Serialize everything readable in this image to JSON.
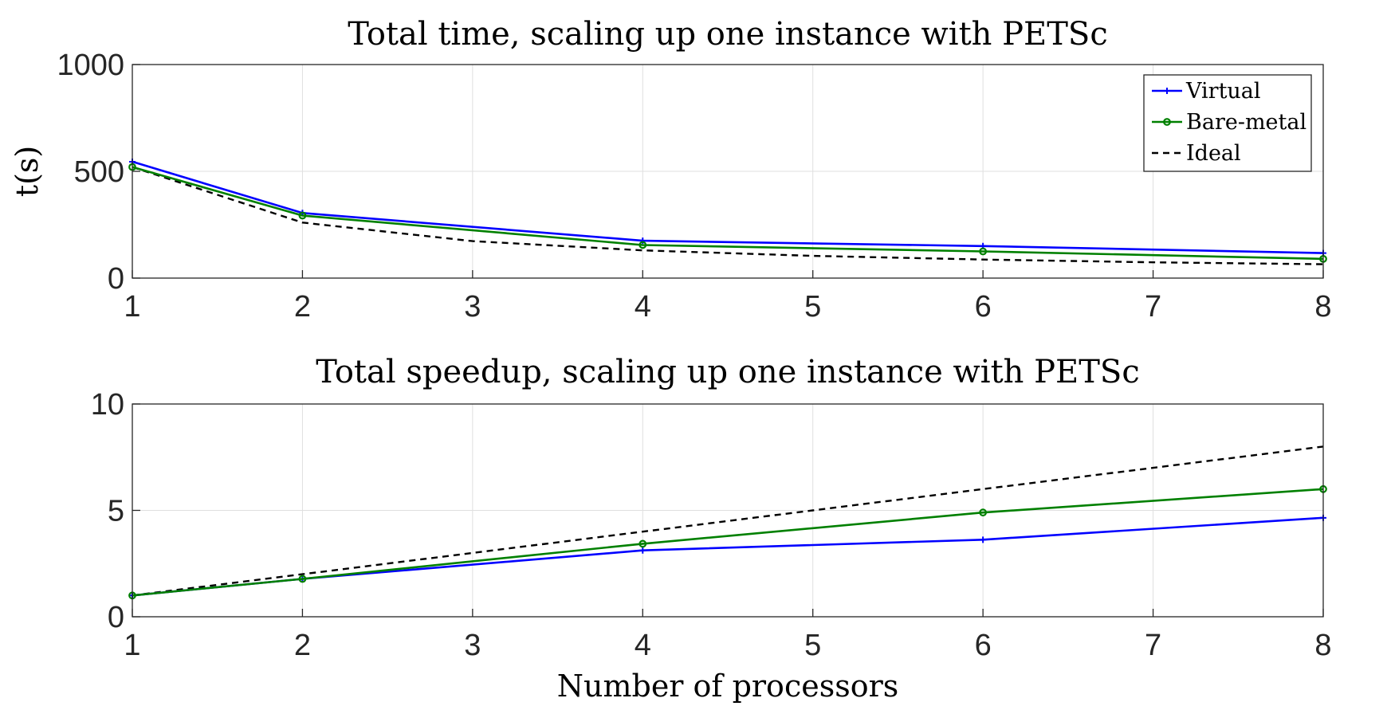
{
  "chart_data": [
    {
      "type": "line",
      "title": "Total time, scaling up one instance with PETSc",
      "xlabel": "",
      "ylabel": "t(s)",
      "xlim": [
        1,
        8
      ],
      "ylim": [
        0,
        1000
      ],
      "xticks": [
        "1",
        "2",
        "3",
        "4",
        "5",
        "6",
        "7",
        "8"
      ],
      "yticks": [
        "0",
        "500",
        "1000"
      ],
      "grid": true,
      "legend_position": "top-right",
      "series": [
        {
          "name": "Virtual",
          "color": "#0000FF",
          "marker": "plus",
          "dash": "solid",
          "x": [
            1,
            2,
            4,
            6,
            8
          ],
          "y": [
            545,
            305,
            175,
            150,
            117
          ]
        },
        {
          "name": "Bare-metal",
          "color": "#008000",
          "marker": "circle",
          "dash": "solid",
          "x": [
            1,
            2,
            4,
            6,
            8
          ],
          "y": [
            520,
            293,
            155,
            125,
            90
          ]
        },
        {
          "name": "Ideal",
          "color": "#000000",
          "marker": "none",
          "dash": "dashed",
          "x": [
            1,
            2,
            3,
            4,
            5,
            6,
            7,
            8
          ],
          "y": [
            520,
            260,
            173,
            130,
            104,
            87,
            74,
            65
          ]
        }
      ]
    },
    {
      "type": "line",
      "title": "Total speedup, scaling up one instance with PETSc",
      "xlabel": "Number of processors",
      "ylabel": "",
      "xlim": [
        1,
        8
      ],
      "ylim": [
        0,
        10
      ],
      "xticks": [
        "1",
        "2",
        "3",
        "4",
        "5",
        "6",
        "7",
        "8"
      ],
      "yticks": [
        "0",
        "5",
        "10"
      ],
      "grid": true,
      "series": [
        {
          "color": "#0000FF",
          "marker": "plus",
          "dash": "solid",
          "x": [
            1,
            2,
            4,
            6,
            8
          ],
          "y": [
            1,
            1.78,
            3.12,
            3.62,
            4.65
          ]
        },
        {
          "color": "#008000",
          "marker": "circle",
          "dash": "solid",
          "x": [
            1,
            2,
            4,
            6,
            8
          ],
          "y": [
            1,
            1.78,
            3.43,
            4.9,
            6.0
          ]
        },
        {
          "color": "#000000",
          "marker": "none",
          "dash": "dashed",
          "x": [
            1,
            2,
            3,
            4,
            5,
            6,
            7,
            8
          ],
          "y": [
            1,
            2,
            3,
            4,
            5,
            6,
            7,
            8
          ]
        }
      ]
    }
  ]
}
